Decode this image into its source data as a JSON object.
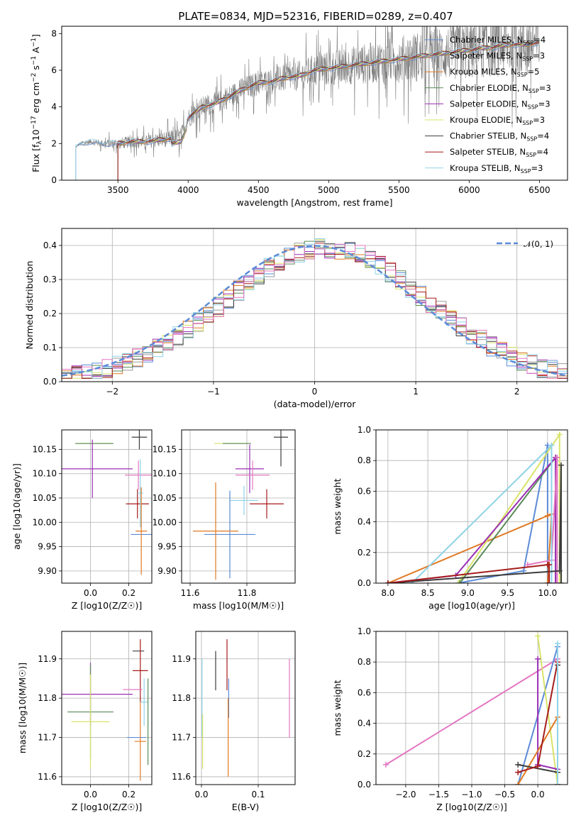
{
  "figure": {
    "title": "PLATE=0834, MJD=52316, FIBERID=0289, z=0.407"
  },
  "chart_data": [
    {
      "type": "line",
      "panel": "spectrum",
      "xlabel": "wavelength [Angstrom, rest frame]",
      "ylabel": "Flux [f_λ 10^-17 erg cm^-2 s^-1 A^-1]",
      "xlim": [
        3100,
        6700
      ],
      "ylim": [
        0,
        8.4
      ],
      "xticks": [
        3500,
        4000,
        4500,
        5000,
        5500,
        6000,
        6500
      ],
      "yticks": [
        0,
        2,
        4,
        6,
        8
      ],
      "grid": false,
      "legend_position": "top-right",
      "series": [
        {
          "name": "Chabrier MILES, N_SSP=4",
          "color": "#5b8bd6"
        },
        {
          "name": "Salpeter MILES, N_SSP=3",
          "color": "#9a9a9a"
        },
        {
          "name": "Kroupa MILES, N_SSP=5",
          "color": "#e07a26"
        },
        {
          "name": "Chabrier ELODIE, N_SSP=3",
          "color": "#5a8a5a"
        },
        {
          "name": "Salpeter ELODIE, N_SSP=3",
          "color": "#9b2fb5"
        },
        {
          "name": "Kroupa ELODIE, N_SSP=3",
          "color": "#d9e36a"
        },
        {
          "name": "Chabrier STELIB, N_SSP=4",
          "color": "#3d3d3d"
        },
        {
          "name": "Salpeter STELIB, N_SSP=4",
          "color": "#a51c1c"
        },
        {
          "name": "Kroupa STELIB, N_SSP=3",
          "color": "#8fd3e8"
        }
      ],
      "model_curve": {
        "x": [
          3200,
          3230,
          3300,
          3400,
          3500,
          3600,
          3700,
          3800,
          3900,
          3950,
          4000,
          4100,
          4200,
          4300,
          4400,
          4500,
          4600,
          4700,
          4800,
          4900,
          5000,
          5100,
          5200,
          5300,
          5400,
          5500,
          5600,
          5700,
          5800,
          5900,
          6000,
          6100,
          6200,
          6300,
          6400,
          6500
        ],
        "y": [
          1.8,
          2.0,
          2.1,
          2.0,
          2.0,
          2.1,
          2.1,
          2.2,
          2.3,
          2.4,
          3.4,
          4.0,
          4.2,
          4.6,
          5.0,
          5.3,
          5.4,
          5.6,
          5.7,
          6.0,
          6.1,
          6.2,
          6.3,
          6.4,
          6.5,
          6.6,
          6.7,
          6.8,
          6.9,
          7.0,
          7.1,
          7.2,
          7.3,
          7.4,
          7.4,
          7.5
        ]
      },
      "data_envelope": {
        "x": [
          3200,
          3500,
          3700,
          3900,
          4000,
          4200,
          4400,
          4600,
          4800,
          5000,
          5200,
          5400,
          5600,
          5800,
          6000,
          6200,
          6400,
          6500
        ],
        "amplitude": [
          0.1,
          0.5,
          0.6,
          0.8,
          0.9,
          1.0,
          1.1,
          1.2,
          1.4,
          1.6,
          1.8,
          2.0,
          2.3,
          2.5,
          2.7,
          2.8,
          3.0,
          3.0
        ]
      }
    },
    {
      "type": "line",
      "panel": "residuals",
      "xlabel": "(data-model)/error",
      "ylabel": "Normed distribution",
      "xlim": [
        -2.5,
        2.5
      ],
      "ylim": [
        0,
        0.45
      ],
      "xticks": [
        -2,
        -1,
        0,
        1,
        2
      ],
      "yticks": [
        0.0,
        0.1,
        0.2,
        0.3,
        0.4
      ],
      "grid": true,
      "legend_position": "top-right",
      "gaussian_label": "𝒩(0, 1)",
      "gaussian_color": "#5b8bd6"
    },
    {
      "type": "scatter",
      "panel": "age-vs-Z",
      "xlabel": "Z [log10(Z/Z☉)]",
      "ylabel": "age  [log10(age/yr)]",
      "xlim": [
        -0.15,
        0.32
      ],
      "ylim": [
        9.875,
        10.19
      ],
      "xticks": [
        0.0,
        0.2
      ],
      "yticks": [
        9.9,
        9.95,
        10.0,
        10.05,
        10.1,
        10.15
      ],
      "grid": true,
      "points": [
        {
          "x": 0.02,
          "y": 10.162,
          "xerr": 0.09,
          "yerr": 0.0,
          "color": "#d9e36a"
        },
        {
          "x": 0.02,
          "y": 10.162,
          "xerr": 0.1,
          "yerr": 0.0,
          "color": "#5a8a5a"
        },
        {
          "x": 0.255,
          "y": 10.175,
          "xerr": 0.04,
          "yerr": 0.025,
          "color": "#3d3d3d"
        },
        {
          "x": 0.0,
          "y": 10.11,
          "xerr": 0.22,
          "yerr": 0.0,
          "color": "#9b2fb5"
        },
        {
          "x": 0.01,
          "y": 10.11,
          "xerr": 0.0,
          "yerr": 0.06,
          "color": "#9b2fb5"
        },
        {
          "x": 0.25,
          "y": 10.097,
          "xerr": 0.07,
          "yerr": 0.03,
          "color": "#e377c2"
        },
        {
          "x": 0.245,
          "y": 10.038,
          "xerr": 0.06,
          "yerr": 0.03,
          "color": "#a51c1c"
        },
        {
          "x": 0.26,
          "y": 10.06,
          "xerr": 0.015,
          "yerr": 0.07,
          "color": "#8fd3e8"
        },
        {
          "x": 0.27,
          "y": 9.975,
          "xerr": 0.06,
          "yerr": 0.0,
          "color": "#5b8bd6"
        },
        {
          "x": 0.265,
          "y": 9.982,
          "xerr": 0.03,
          "yerr": 0.09,
          "color": "#e07a26"
        }
      ]
    },
    {
      "type": "scatter",
      "panel": "age-vs-mass",
      "xlabel": "mass [log10(M/M☉)]",
      "ylabel": "",
      "xlim": [
        11.57,
        11.97
      ],
      "ylim": [
        9.875,
        10.19
      ],
      "xticks": [
        11.6,
        11.8
      ],
      "yticks": [
        9.9,
        9.95,
        10.0,
        10.05,
        10.1,
        10.15
      ],
      "grid": true,
      "points": [
        {
          "x": 11.745,
          "y": 10.162,
          "xerr": 0.06,
          "yerr": 0.0,
          "color": "#d9e36a"
        },
        {
          "x": 11.765,
          "y": 10.162,
          "xerr": 0.05,
          "yerr": 0.0,
          "color": "#5a8a5a"
        },
        {
          "x": 11.92,
          "y": 10.175,
          "xerr": 0.025,
          "yerr": 0.06,
          "color": "#3d3d3d"
        },
        {
          "x": 11.81,
          "y": 10.11,
          "xerr": 0.05,
          "yerr": 0.05,
          "color": "#9b2fb5"
        },
        {
          "x": 11.82,
          "y": 10.097,
          "xerr": 0.06,
          "yerr": 0.03,
          "color": "#e377c2"
        },
        {
          "x": 11.87,
          "y": 10.038,
          "xerr": 0.06,
          "yerr": 0.03,
          "color": "#a51c1c"
        },
        {
          "x": 11.79,
          "y": 10.045,
          "xerr": 0.05,
          "yerr": 0.03,
          "color": "#8fd3e8"
        },
        {
          "x": 11.74,
          "y": 9.975,
          "xerr": 0.09,
          "yerr": 0.09,
          "color": "#5b8bd6"
        },
        {
          "x": 11.69,
          "y": 9.982,
          "xerr": 0.08,
          "yerr": 0.1,
          "color": "#e07a26"
        }
      ]
    },
    {
      "type": "line",
      "panel": "mass-weight-vs-age",
      "xlabel": "age  [log10(age/yr)]",
      "ylabel": "mass weight",
      "xlim": [
        7.85,
        10.25
      ],
      "ylim": [
        0,
        1
      ],
      "xticks": [
        8.0,
        8.5,
        9.0,
        9.5,
        10.0
      ],
      "yticks": [
        0.0,
        0.2,
        0.4,
        0.6,
        0.8,
        1.0
      ],
      "grid": true,
      "series": [
        {
          "color": "#5b8bd6",
          "x": [
            8.88,
            9.7,
            10.0,
            10.0
          ],
          "y": [
            0.0,
            0.08,
            0.9,
            0.0
          ]
        },
        {
          "color": "#e07a26",
          "x": [
            8.0,
            10.0,
            10.05,
            10.0
          ],
          "y": [
            0.0,
            0.44,
            0.45,
            0.0
          ]
        },
        {
          "color": "#d9e36a",
          "x": [
            8.88,
            10.15,
            10.15
          ],
          "y": [
            0.0,
            0.97,
            0.0
          ]
        },
        {
          "color": "#5a8a5a",
          "x": [
            8.9,
            10.1,
            10.1
          ],
          "y": [
            0.0,
            0.82,
            0.0
          ]
        },
        {
          "color": "#9b2fb5",
          "x": [
            8.0,
            8.85,
            10.1,
            10.1
          ],
          "y": [
            0.0,
            0.05,
            0.82,
            0.0
          ]
        },
        {
          "color": "#e377c2",
          "x": [
            9.75,
            10.05,
            10.12,
            10.12
          ],
          "y": [
            0.12,
            0.15,
            0.82,
            0.0
          ]
        },
        {
          "color": "#8fd3e8",
          "x": [
            8.3,
            10.05,
            10.05
          ],
          "y": [
            0.0,
            0.9,
            0.0
          ]
        },
        {
          "color": "#3d3d3d",
          "x": [
            8.0,
            10.15,
            10.17,
            10.17
          ],
          "y": [
            0.0,
            0.08,
            0.77,
            0.0
          ]
        },
        {
          "color": "#a51c1c",
          "x": [
            8.0,
            10.0,
            10.02,
            10.02
          ],
          "y": [
            0.0,
            0.12,
            0.12,
            0.0
          ]
        }
      ]
    },
    {
      "type": "scatter",
      "panel": "mass-vs-Z",
      "xlabel": "Z [log10(Z/Z☉)]",
      "ylabel": "mass [log10(M/M☉)]",
      "xlim": [
        -0.15,
        0.32
      ],
      "ylim": [
        11.58,
        11.97
      ],
      "xticks": [
        0.0,
        0.2
      ],
      "yticks": [
        11.6,
        11.7,
        11.8,
        11.9
      ],
      "grid": true,
      "points": [
        {
          "x": 0.25,
          "y": 11.92,
          "xerr": 0.03,
          "yerr": 0.0,
          "color": "#3d3d3d"
        },
        {
          "x": 0.26,
          "y": 11.87,
          "xerr": 0.04,
          "yerr": 0.08,
          "color": "#a51c1c"
        },
        {
          "x": 0.22,
          "y": 11.822,
          "xerr": 0.05,
          "yerr": 0.0,
          "color": "#e377c2"
        },
        {
          "x": 0.0,
          "y": 11.81,
          "xerr": 0.22,
          "yerr": 0.08,
          "color": "#9b2fb5"
        },
        {
          "x": 0.28,
          "y": 11.79,
          "xerr": 0.02,
          "yerr": 0.06,
          "color": "#8fd3e8"
        },
        {
          "x": 0.0,
          "y": 11.765,
          "xerr": 0.12,
          "yerr": 0.12,
          "color": "#5a8a5a"
        },
        {
          "x": 0.0,
          "y": 11.74,
          "xerr": 0.1,
          "yerr": 0.12,
          "color": "#d9e36a"
        },
        {
          "x": 0.24,
          "y": 11.7,
          "xerr": 0.05,
          "yerr": 0.0,
          "color": "#5b8bd6"
        },
        {
          "x": 0.26,
          "y": 11.69,
          "xerr": 0.03,
          "yerr": 0.1,
          "color": "#e07a26"
        },
        {
          "x": 0.3,
          "y": 11.74,
          "xerr": 0.0,
          "yerr": 0.11,
          "color": "#5a8a5a"
        }
      ]
    },
    {
      "type": "scatter",
      "panel": "mass-vs-EBV",
      "xlabel": "E(B-V)",
      "ylabel": "",
      "xlim": [
        -0.01,
        0.165
      ],
      "ylim": [
        11.58,
        11.97
      ],
      "xticks": [
        0.0,
        0.1
      ],
      "yticks": [
        11.6,
        11.7,
        11.8,
        11.9
      ],
      "grid": true,
      "points": [
        {
          "x": 0.025,
          "y": 11.87,
          "yerr": 0.05,
          "color": "#3d3d3d"
        },
        {
          "x": 0.045,
          "y": 11.885,
          "yerr": 0.065,
          "color": "#a51c1c"
        },
        {
          "x": 0.048,
          "y": 11.8,
          "yerr": 0.05,
          "color": "#5b8bd6"
        },
        {
          "x": 0.047,
          "y": 11.7,
          "yerr": 0.1,
          "color": "#e07a26"
        },
        {
          "x": 0.155,
          "y": 11.8,
          "yerr": 0.1,
          "color": "#e377c2"
        },
        {
          "x": 0.001,
          "y": 11.8,
          "yerr": 0.1,
          "color": "#8fd3e8"
        },
        {
          "x": 0.002,
          "y": 11.69,
          "yerr": 0.07,
          "color": "#d9e36a"
        }
      ]
    },
    {
      "type": "line",
      "panel": "mass-weight-vs-Z",
      "xlabel": "Z [log10(Z/Z☉)]",
      "ylabel": "mass weight",
      "xlim": [
        -2.45,
        0.45
      ],
      "ylim": [
        0,
        1
      ],
      "xticks": [
        -2.0,
        -1.5,
        -1.0,
        -0.5,
        0.0
      ],
      "yticks": [
        0.0,
        0.2,
        0.4,
        0.6,
        0.8,
        1.0
      ],
      "grid": true,
      "series": [
        {
          "color": "#e377c2",
          "x": [
            -2.3,
            0.3,
            0.3
          ],
          "y": [
            0.13,
            0.82,
            0.0
          ]
        },
        {
          "color": "#5b8bd6",
          "x": [
            -0.3,
            0.3,
            0.3
          ],
          "y": [
            0.0,
            0.9,
            0.0
          ]
        },
        {
          "color": "#d9e36a",
          "x": [
            0.0,
            0.3,
            0.3
          ],
          "y": [
            0.97,
            0.0,
            0.0
          ]
        },
        {
          "color": "#9b2fb5",
          "x": [
            0.0,
            0.0,
            0.3
          ],
          "y": [
            0.82,
            0.13,
            0.1
          ]
        },
        {
          "color": "#e07a26",
          "x": [
            -0.3,
            0.3,
            0.3
          ],
          "y": [
            0.0,
            0.44,
            0.0
          ]
        },
        {
          "color": "#3d3d3d",
          "x": [
            -0.3,
            0.3,
            0.3,
            0.3
          ],
          "y": [
            0.13,
            0.08,
            0.78,
            0.0
          ]
        },
        {
          "color": "#a51c1c",
          "x": [
            -0.3,
            0.0,
            0.3,
            0.3
          ],
          "y": [
            0.08,
            0.12,
            0.8,
            0.0
          ]
        },
        {
          "color": "#8fd3e8",
          "x": [
            0.3,
            0.3
          ],
          "y": [
            0.92,
            0.0
          ]
        }
      ]
    }
  ]
}
